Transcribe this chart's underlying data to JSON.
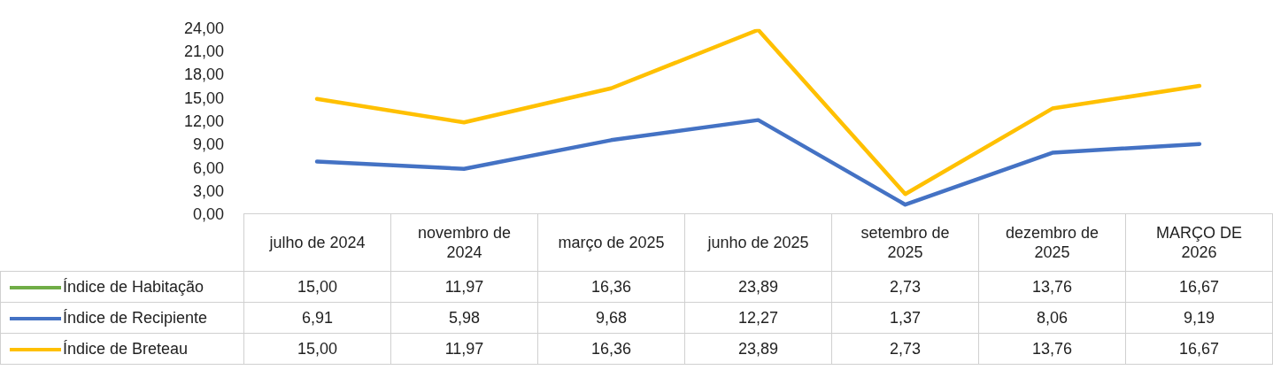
{
  "chart_data": {
    "type": "line",
    "categories": [
      "julho de 2024",
      "novembro de 2024",
      "março de 2025",
      "junho de 2025",
      "setembro de 2025",
      "dezembro de 2025",
      "MARÇO DE 2026"
    ],
    "series": [
      {
        "name": "Índice de Habitação",
        "color": "#70ad47",
        "values": [
          null,
          null,
          null,
          null,
          null,
          null,
          null
        ],
        "value_labels": [
          "15,00",
          "11,97",
          "16,36",
          "23,89",
          "2,73",
          "13,76",
          "16,67"
        ]
      },
      {
        "name": "Índice de Recipiente",
        "color": "#4472c4",
        "values": [
          6.91,
          5.98,
          9.68,
          12.27,
          1.37,
          8.06,
          9.19
        ],
        "value_labels": [
          "6,91",
          "5,98",
          "9,68",
          "12,27",
          "1,37",
          "8,06",
          "9,19"
        ]
      },
      {
        "name": "Índice de Breteau",
        "color": "#ffc000",
        "values": [
          15,
          11.97,
          16.36,
          23.89,
          2.73,
          13.76,
          16.67
        ],
        "value_labels": [
          "15,00",
          "11,97",
          "16,36",
          "23,89",
          "2,73",
          "13,76",
          "16,67"
        ]
      }
    ],
    "ylim": [
      0,
      24
    ],
    "yticks": [
      {
        "value": 0,
        "label": "0,00"
      },
      {
        "value": 3,
        "label": "3,00"
      },
      {
        "value": 6,
        "label": "6,00"
      },
      {
        "value": 9,
        "label": "9,00"
      },
      {
        "value": 12,
        "label": "12,00"
      },
      {
        "value": 15,
        "label": "15,00"
      },
      {
        "value": 18,
        "label": "18,00"
      },
      {
        "value": 21,
        "label": "21,00"
      },
      {
        "value": 24,
        "label": "24,00"
      }
    ],
    "legend": "bottom left",
    "marker": "none",
    "line_style": "solid"
  }
}
